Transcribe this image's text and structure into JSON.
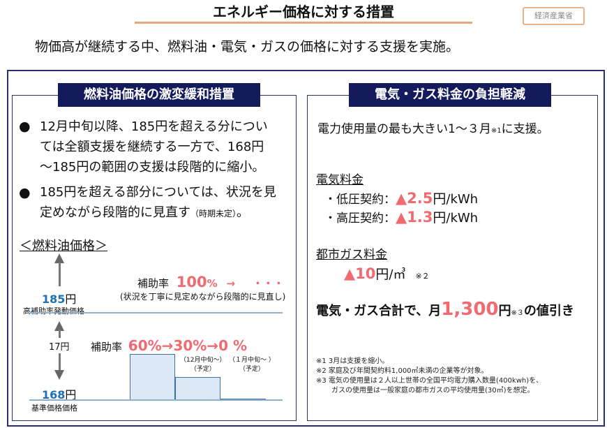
{
  "header": {
    "title": "エネルギー価格に対する措置",
    "ministry": "経済産業省",
    "subtitle": "物価高が継続する中、燃料油・電気・ガスの価格に対する支援を実施。"
  },
  "left": {
    "heading": "燃料油価格の激変緩和措置",
    "bullets": [
      {
        "lines": [
          "12月中旬以降、185円を超える分につい",
          "ては全額支援を継続する一方で、168円",
          "～185円の範囲の支援は段階的に縮小。"
        ]
      },
      {
        "lines": [
          "185円を超える部分については、状況を見",
          "定めながら段階的に見直す"
        ],
        "small": "（時期未定）",
        "end": "。"
      }
    ],
    "chart": {
      "title": "＜燃料油価格＞",
      "upper_price": "185",
      "yen": "円",
      "upper_label": "高補助率発動価格",
      "lower_price": "168",
      "lower_label": "基準価格価格",
      "gap": "17円",
      "upper_rate_label": "補助率",
      "upper_rate": "100",
      "pct": "%",
      "upper_arrow": "→",
      "upper_rest": "・・・",
      "upper_note": "(状況を丁寧に見定めながら段階的に見直し)",
      "lower_rate_label": "補助率",
      "lower_rates": [
        "60%→",
        "30%→",
        "0 %"
      ],
      "rate_values": [
        60,
        30,
        0
      ],
      "step_notes": [
        [
          "（12月中旬～）",
          "（予定）"
        ],
        [
          "（１月中旬～ ）",
          "（予定）"
        ]
      ]
    }
  },
  "right": {
    "heading": "電気・ガス料金の負担軽減",
    "intro": "電力使用量の最も大きい1～３月",
    "intro_note": "※1",
    "intro_end": "に支援。",
    "electricity_title": "電気料金",
    "electricity": [
      {
        "label": "・低圧契約：",
        "value": "▲2.5",
        "unit_yen": "円",
        "unit": "/kWh"
      },
      {
        "label": "・高圧契約：",
        "value": "▲1.3",
        "unit_yen": "円",
        "unit": "/kWh"
      }
    ],
    "gas_title": "都市ガス料金",
    "gas": {
      "value": "▲10",
      "unit_yen": "円",
      "unit": "/㎥",
      "note": "※２"
    },
    "total": {
      "prefix": "電気・ガス合計で、月",
      "value": "1,300",
      "yen": "円",
      "note": "※３",
      "suffix": "の値引き"
    },
    "notes": [
      "※1 3月は支援を縮小。",
      "※2 家庭及び年間契約料1,000㎥未満の企業等が対象。",
      "※3 電気の使用量は２人以上世帯の全国平均電力購入数量(400kwh)を、",
      "ガスの使用量は一般家庭の都市ガスの平均使用量(30㎥)を想定。"
    ]
  },
  "colors": {
    "navy": "#141a5c",
    "accent_red": "#f06a72",
    "price_blue": "#1f6fb4",
    "title_underline": "#e8a878"
  }
}
